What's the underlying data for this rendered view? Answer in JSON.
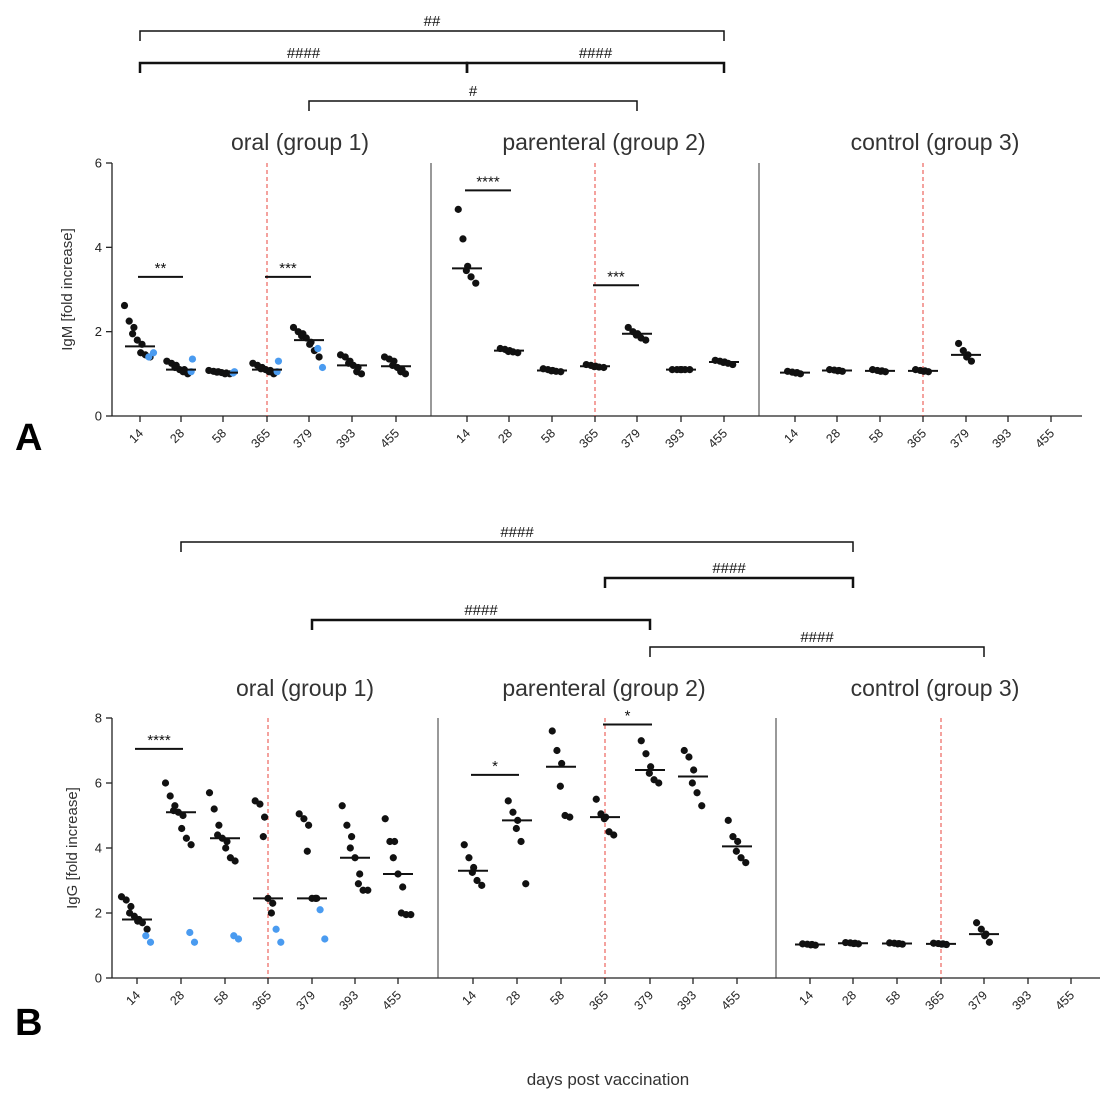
{
  "x_axis_title": "days post vaccination",
  "chart_data": [
    {
      "type": "scatter",
      "panel": "A",
      "ylabel": "IgM [fold increase]",
      "ylim": [
        0,
        6
      ],
      "yticks": [
        0,
        2,
        4,
        6
      ],
      "groups": [
        {
          "title": "oral (group 1)",
          "timepoints": [
            {
              "day": "14",
              "median": 1.65,
              "black": [
                2.62,
                2.25,
                2.1,
                1.95,
                1.8,
                1.7,
                1.5,
                1.45,
                1.4
              ],
              "blue": [
                1.4,
                1.5
              ]
            },
            {
              "day": "28",
              "median": 1.1,
              "black": [
                1.3,
                1.25,
                1.2,
                1.15,
                1.1,
                1.1,
                1.05,
                1.0
              ],
              "blue": [
                1.35,
                1.05
              ]
            },
            {
              "day": "58",
              "median": 1.03,
              "black": [
                1.08,
                1.06,
                1.05,
                1.04,
                1.03,
                1.02,
                1.0,
                1.0
              ],
              "blue": [
                1.05,
                1.02
              ]
            },
            {
              "day": "365",
              "median": 1.1,
              "black": [
                1.25,
                1.2,
                1.15,
                1.12,
                1.1,
                1.08,
                1.05,
                1.0
              ],
              "blue": [
                1.3,
                1.05
              ]
            },
            {
              "day": "379",
              "median": 1.8,
              "black": [
                2.1,
                2.0,
                1.95,
                1.9,
                1.85,
                1.75,
                1.7,
                1.55,
                1.4
              ],
              "blue": [
                1.6,
                1.15
              ]
            },
            {
              "day": "393",
              "median": 1.2,
              "black": [
                1.45,
                1.4,
                1.3,
                1.25,
                1.2,
                1.15,
                1.05,
                1.0
              ],
              "blue": []
            },
            {
              "day": "455",
              "median": 1.18,
              "black": [
                1.4,
                1.35,
                1.3,
                1.2,
                1.15,
                1.1,
                1.05,
                1.0
              ],
              "blue": []
            }
          ]
        },
        {
          "title": "parenteral (group 2)",
          "timepoints": [
            {
              "day": "14",
              "median": 3.5,
              "black": [
                4.9,
                4.2,
                3.55,
                3.45,
                3.3,
                3.15
              ],
              "blue": []
            },
            {
              "day": "28",
              "median": 1.55,
              "black": [
                1.6,
                1.58,
                1.55,
                1.53,
                1.52,
                1.5
              ],
              "blue": []
            },
            {
              "day": "58",
              "median": 1.08,
              "black": [
                1.12,
                1.1,
                1.08,
                1.07,
                1.06,
                1.05
              ],
              "blue": []
            },
            {
              "day": "365",
              "median": 1.18,
              "black": [
                1.22,
                1.2,
                1.18,
                1.17,
                1.16,
                1.15
              ],
              "blue": []
            },
            {
              "day": "379",
              "median": 1.95,
              "black": [
                2.1,
                2.0,
                1.95,
                1.92,
                1.85,
                1.8
              ],
              "blue": []
            },
            {
              "day": "393",
              "median": 1.1,
              "black": [
                1.1,
                1.1,
                1.1,
                1.1,
                1.1,
                1.1
              ],
              "blue": []
            },
            {
              "day": "455",
              "median": 1.28,
              "black": [
                1.32,
                1.3,
                1.28,
                1.27,
                1.25,
                1.22
              ],
              "blue": []
            }
          ]
        },
        {
          "title": "control (group 3)",
          "timepoints": [
            {
              "day": "14",
              "median": 1.03,
              "black": [
                1.06,
                1.04,
                1.03,
                1.02,
                1.0
              ],
              "blue": []
            },
            {
              "day": "28",
              "median": 1.08,
              "black": [
                1.1,
                1.09,
                1.08,
                1.07,
                1.06
              ],
              "blue": []
            },
            {
              "day": "58",
              "median": 1.07,
              "black": [
                1.1,
                1.08,
                1.07,
                1.06,
                1.05
              ],
              "blue": []
            },
            {
              "day": "365",
              "median": 1.07,
              "black": [
                1.1,
                1.08,
                1.07,
                1.06,
                1.05
              ],
              "blue": []
            },
            {
              "day": "379",
              "median": 1.45,
              "black": [
                1.72,
                1.55,
                1.45,
                1.4,
                1.3
              ],
              "blue": []
            },
            {
              "day": "393",
              "median": null,
              "black": [],
              "blue": []
            },
            {
              "day": "455",
              "median": null,
              "black": [],
              "blue": []
            }
          ]
        }
      ],
      "within_group_sig": [
        {
          "group": 0,
          "from": 0,
          "to": 1,
          "label": "**",
          "y": 3.3
        },
        {
          "group": 0,
          "from": 3,
          "to": 4,
          "label": "***",
          "y": 3.3
        },
        {
          "group": 1,
          "from": 0,
          "to": 1,
          "label": "****",
          "y": 5.35
        },
        {
          "group": 1,
          "from": 3,
          "to": 4,
          "label": "***",
          "y": 3.1
        }
      ],
      "between_group_sig": [
        {
          "label": "##",
          "from": {
            "group": 0,
            "index": 0
          },
          "to": {
            "group": 1,
            "index": 6
          },
          "level": 0
        },
        {
          "label": "####",
          "from": {
            "group": 0,
            "index": 0
          },
          "to": {
            "group": 1,
            "index": 0
          },
          "level": 1
        },
        {
          "label": "####",
          "from": {
            "group": 1,
            "index": 0
          },
          "to": {
            "group": 1,
            "index": 6
          },
          "level": 1
        },
        {
          "label": "#",
          "from": {
            "group": 0,
            "index": 4
          },
          "to": {
            "group": 1,
            "index": 4
          },
          "level": 2
        }
      ]
    },
    {
      "type": "scatter",
      "panel": "B",
      "ylabel": "IgG [fold increase]",
      "ylim": [
        0,
        8
      ],
      "yticks": [
        0,
        2,
        4,
        6,
        8
      ],
      "groups": [
        {
          "title": "oral (group 1)",
          "timepoints": [
            {
              "day": "14",
              "median": 1.8,
              "black": [
                2.5,
                2.4,
                2.2,
                2.0,
                1.9,
                1.8,
                1.75,
                1.7,
                1.5
              ],
              "blue": [
                1.3,
                1.1
              ]
            },
            {
              "day": "28",
              "median": 5.1,
              "black": [
                6.0,
                5.6,
                5.3,
                5.15,
                5.1,
                5.0,
                4.6,
                4.3,
                4.1
              ],
              "blue": [
                1.4,
                1.1
              ]
            },
            {
              "day": "58",
              "median": 4.3,
              "black": [
                5.7,
                5.2,
                4.7,
                4.4,
                4.3,
                4.2,
                4.0,
                3.7,
                3.6
              ],
              "blue": [
                1.3,
                1.2
              ]
            },
            {
              "day": "365",
              "median": 2.45,
              "black": [
                5.45,
                5.35,
                4.95,
                4.35,
                2.45,
                2.3,
                2.0
              ],
              "blue": [
                1.5,
                1.1
              ]
            },
            {
              "day": "379",
              "median": 2.45,
              "black": [
                5.05,
                4.9,
                4.7,
                3.9,
                2.45,
                2.45,
                2.45
              ],
              "blue": [
                2.1,
                1.2
              ]
            },
            {
              "day": "393",
              "median": 3.7,
              "black": [
                5.3,
                4.7,
                4.35,
                4.0,
                3.7,
                3.2,
                2.9,
                2.7,
                2.7
              ],
              "blue": []
            },
            {
              "day": "455",
              "median": 3.2,
              "black": [
                4.9,
                4.2,
                4.2,
                3.7,
                3.2,
                2.8,
                2.0,
                1.95,
                1.95
              ],
              "blue": []
            }
          ]
        },
        {
          "title": "parenteral (group 2)",
          "timepoints": [
            {
              "day": "14",
              "median": 3.3,
              "black": [
                4.1,
                3.7,
                3.4,
                3.25,
                3.0,
                2.85
              ],
              "blue": []
            },
            {
              "day": "28",
              "median": 4.85,
              "black": [
                5.45,
                5.1,
                4.85,
                4.6,
                4.2,
                2.9
              ],
              "blue": []
            },
            {
              "day": "58",
              "median": 6.5,
              "black": [
                7.6,
                7.0,
                6.6,
                5.9,
                5.0,
                4.95
              ],
              "blue": []
            },
            {
              "day": "365",
              "median": 4.95,
              "black": [
                5.5,
                5.05,
                4.95,
                4.9,
                4.5,
                4.4
              ],
              "blue": []
            },
            {
              "day": "379",
              "median": 6.4,
              "black": [
                7.3,
                6.9,
                6.5,
                6.3,
                6.1,
                6.0
              ],
              "blue": []
            },
            {
              "day": "393",
              "median": 6.2,
              "black": [
                7.0,
                6.8,
                6.4,
                6.0,
                5.7,
                5.3
              ],
              "blue": []
            },
            {
              "day": "455",
              "median": 4.05,
              "black": [
                4.85,
                4.35,
                4.2,
                3.9,
                3.7,
                3.55
              ],
              "blue": []
            }
          ]
        },
        {
          "title": "control (group 3)",
          "timepoints": [
            {
              "day": "14",
              "median": 1.03,
              "black": [
                1.05,
                1.04,
                1.03,
                1.02,
                1.01
              ],
              "blue": []
            },
            {
              "day": "28",
              "median": 1.07,
              "black": [
                1.09,
                1.08,
                1.07,
                1.06,
                1.05
              ],
              "blue": []
            },
            {
              "day": "58",
              "median": 1.06,
              "black": [
                1.08,
                1.07,
                1.06,
                1.05,
                1.04
              ],
              "blue": []
            },
            {
              "day": "365",
              "median": 1.05,
              "black": [
                1.07,
                1.06,
                1.05,
                1.04,
                1.03
              ],
              "blue": []
            },
            {
              "day": "379",
              "median": 1.35,
              "black": [
                1.7,
                1.5,
                1.35,
                1.3,
                1.1
              ],
              "blue": []
            },
            {
              "day": "393",
              "median": null,
              "black": [],
              "blue": []
            },
            {
              "day": "455",
              "median": null,
              "black": [],
              "blue": []
            }
          ]
        }
      ],
      "within_group_sig": [
        {
          "group": 0,
          "from": 0,
          "to": 1,
          "label": "****",
          "y": 7.05
        },
        {
          "group": 1,
          "from": 0,
          "to": 1,
          "label": "*",
          "y": 6.25
        },
        {
          "group": 1,
          "from": 3,
          "to": 4,
          "label": "*",
          "y": 7.8
        }
      ],
      "between_group_sig": [
        {
          "label": "####",
          "from": {
            "group": 0,
            "index": 1
          },
          "to": {
            "group": 2,
            "index": 1
          },
          "level": 0
        },
        {
          "label": "####",
          "from": {
            "group": 1,
            "index": 3
          },
          "to": {
            "group": 2,
            "index": 1
          },
          "level": 1
        },
        {
          "label": "####",
          "from": {
            "group": 0,
            "index": 4
          },
          "to": {
            "group": 1,
            "index": 4
          },
          "level": 2
        },
        {
          "label": "####",
          "from": {
            "group": 1,
            "index": 4
          },
          "to": {
            "group": 2,
            "index": 4
          },
          "level": 3
        }
      ]
    }
  ]
}
